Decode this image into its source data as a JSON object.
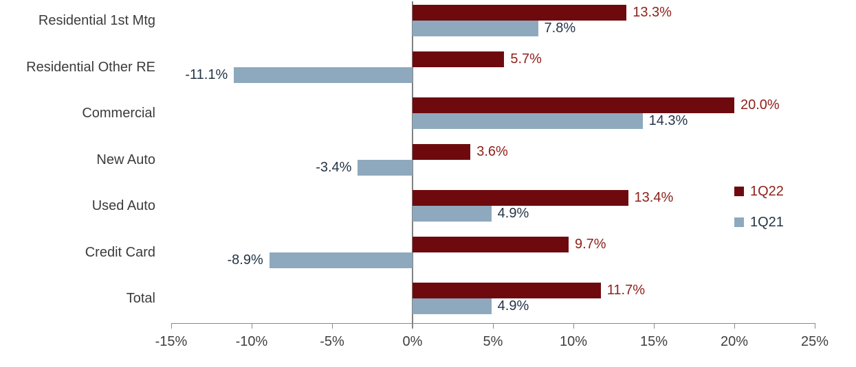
{
  "chart_data": {
    "type": "bar",
    "orientation": "horizontal",
    "title": "",
    "xlabel": "",
    "ylabel": "",
    "grid": false,
    "categories": [
      "Residential 1st Mtg",
      "Residential Other RE",
      "Commercial",
      "New Auto",
      "Used Auto",
      "Credit Card",
      "Total"
    ],
    "series": [
      {
        "name": "1Q22",
        "color": "#6e0a0e",
        "label_color": "#8e211b",
        "values": [
          13.3,
          5.7,
          20.0,
          3.6,
          13.4,
          9.7,
          11.7
        ],
        "value_labels": [
          "13.3%",
          "5.7%",
          "20.0%",
          "3.6%",
          "13.4%",
          "9.7%",
          "11.7%"
        ]
      },
      {
        "name": "1Q21",
        "color": "#8ea9bd",
        "label_color": "#243447",
        "values": [
          7.8,
          -11.1,
          14.3,
          -3.4,
          4.9,
          -8.9,
          4.9
        ],
        "value_labels": [
          "7.8%",
          "-11.1%",
          "14.3%",
          "-3.4%",
          "4.9%",
          "-8.9%",
          "4.9%"
        ]
      }
    ],
    "xlim": [
      -15,
      25
    ],
    "x_ticks": [
      -15,
      -10,
      -5,
      0,
      5,
      10,
      15,
      20,
      25
    ],
    "x_tick_labels": [
      "-15%",
      "-10%",
      "-5%",
      "0%",
      "5%",
      "10%",
      "15%",
      "20%",
      "25%"
    ],
    "legend": {
      "position": "right",
      "entries": [
        "1Q22",
        "1Q21"
      ]
    },
    "axis_color": "#898989",
    "zero_line_color": "#808080",
    "text_color": "#3b3b3b"
  }
}
